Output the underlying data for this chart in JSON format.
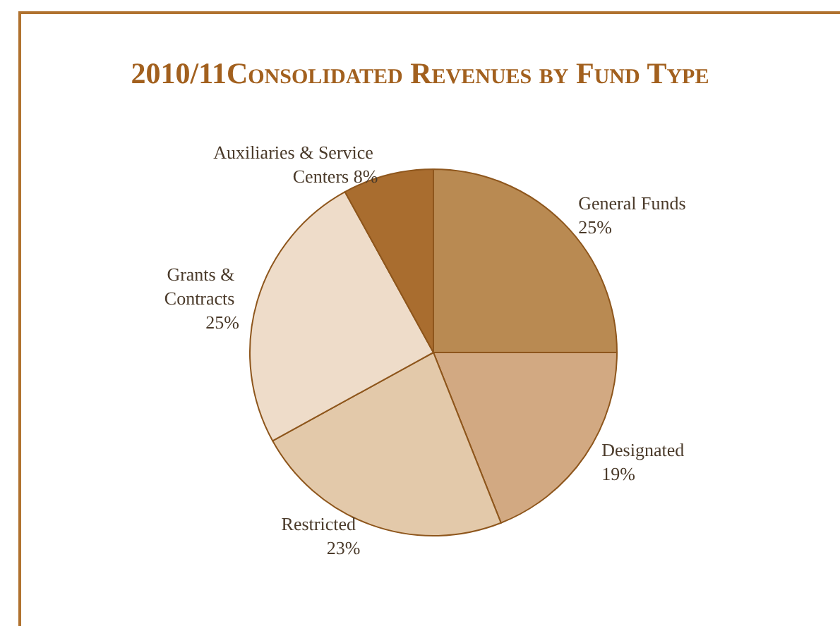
{
  "chart_data": {
    "type": "pie",
    "title": "2010/11Consolidated Revenues by Fund Type",
    "categories": [
      "General Funds",
      "Designated",
      "Restricted",
      "Grants & Contracts",
      "Auxiliaries & Service Centers"
    ],
    "values": [
      25,
      19,
      23,
      25,
      8
    ],
    "value_labels": [
      "25%",
      "19%",
      "23%",
      "25%",
      "8%"
    ],
    "colors": [
      "#b98a52",
      "#d2a982",
      "#e3c9aa",
      "#eedcc9",
      "#a96d2f"
    ],
    "legend": false
  }
}
